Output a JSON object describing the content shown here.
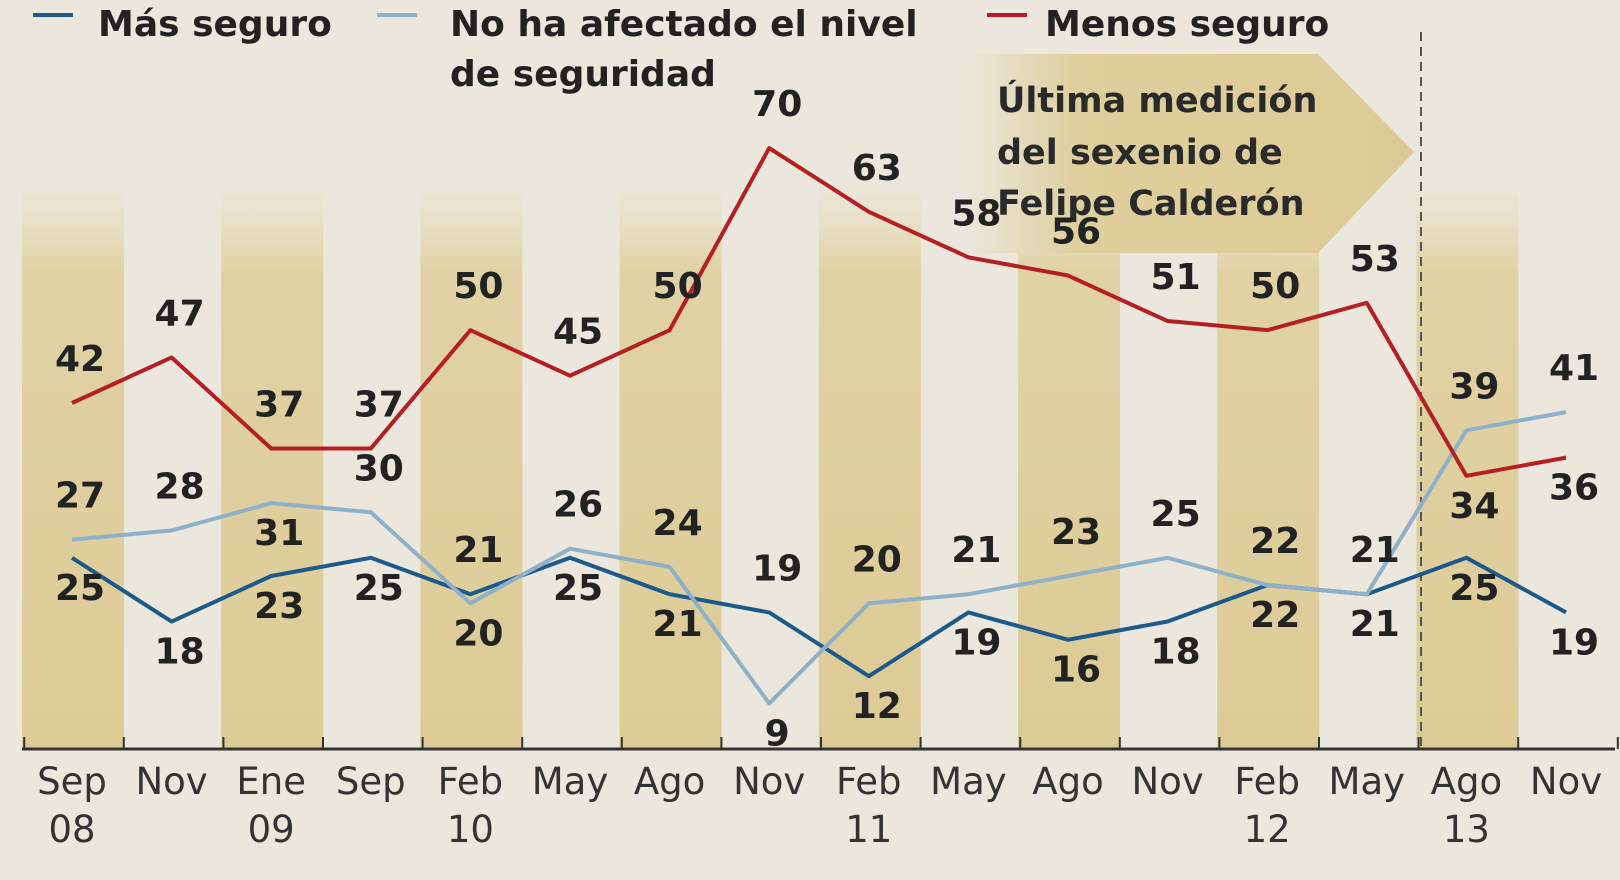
{
  "chart_data": {
    "type": "line",
    "categories": [
      "Sep\n08",
      "Nov",
      "Ene\n09",
      "Sep",
      "Feb\n10",
      "May",
      "Ago",
      "Nov",
      "Feb\n11",
      "May",
      "Ago",
      "Nov",
      "Feb\n12",
      "May",
      "Ago\n13",
      "Nov"
    ],
    "series": [
      {
        "name": "Más seguro",
        "color": "#1d5a8c",
        "values": [
          25,
          18,
          23,
          25,
          21,
          25,
          21,
          19,
          12,
          19,
          16,
          18,
          22,
          21,
          25,
          19
        ]
      },
      {
        "name": "No ha afectado el nivel\n de seguridad",
        "color": "#8eb0c9",
        "values": [
          27,
          28,
          31,
          30,
          20,
          26,
          24,
          9,
          20,
          21,
          23,
          25,
          22,
          21,
          39,
          41
        ]
      },
      {
        "name": "Menos seguro",
        "color": "#b51f24",
        "values": [
          42,
          47,
          37,
          37,
          50,
          45,
          50,
          70,
          63,
          58,
          56,
          51,
          50,
          53,
          34,
          36
        ]
      }
    ],
    "ylim": [
      4,
      80
    ],
    "annotation": [
      "Última medición",
      "del sexenio de",
      "Felipe Calderón"
    ]
  }
}
